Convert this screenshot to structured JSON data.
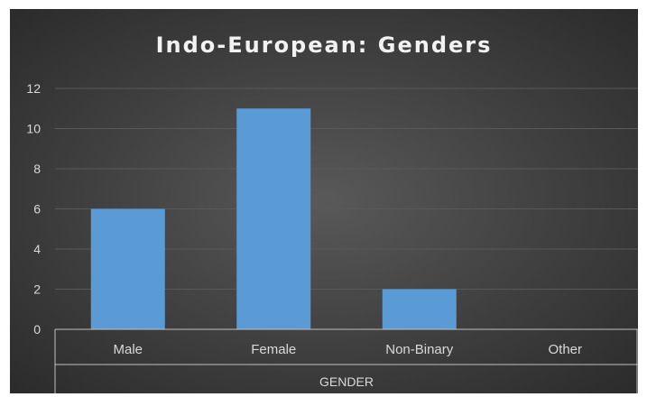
{
  "chart_data": {
    "type": "bar",
    "title": "Indo-European: Genders",
    "categories": [
      "Male",
      "Female",
      "Non-Binary",
      "Other"
    ],
    "values": [
      6,
      11,
      2,
      0
    ],
    "xlabel": "GENDER",
    "ylabel": "",
    "ylim": [
      0,
      12
    ],
    "yticks": [
      "0",
      "2",
      "4",
      "6",
      "8",
      "10",
      "12"
    ],
    "grid": true,
    "legend": "none",
    "colors": {
      "bar": "#5b9bd5",
      "background": "#404040",
      "text": "#d9d9d9",
      "title": "#f2f2f2",
      "gridline": "#595959"
    }
  }
}
